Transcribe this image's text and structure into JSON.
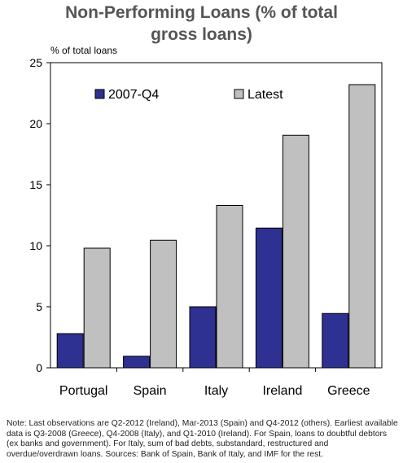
{
  "chart_data": {
    "type": "bar",
    "title_lines": [
      "Non-Performing Loans (% of total",
      "gross loans)"
    ],
    "ylabel": "% of total loans",
    "categories": [
      "Portugal",
      "Spain",
      "Italy",
      "Ireland",
      "Greece"
    ],
    "series": [
      {
        "name": "2007-Q4",
        "color": "#2e3192",
        "values": [
          2.8,
          0.95,
          5.0,
          11.45,
          4.45
        ]
      },
      {
        "name": "Latest",
        "color": "#c0c0c0",
        "values": [
          9.8,
          10.45,
          13.3,
          19.05,
          23.2
        ]
      }
    ],
    "ylim": [
      0,
      25
    ],
    "yticks": [
      "0",
      "5",
      "10",
      "15",
      "20",
      "25"
    ],
    "legend_position": "top-left, inside plot",
    "grid": false
  },
  "note": "Note: Last observations are Q2-2012 (Ireland), Mar-2013 (Spain) and Q4-2012 (others). Earliest available data is Q3-2008 (Greece), Q4-2008 (Italy), and Q1-2010 (Ireland). For Spain, loans to doubtful debtors (ex banks and government). For Italy, sum of bad debts, substandard, restructured and overdue/overdrawn loans. Sources: Bank of Spain, Bank of Italy, and IMF for the rest."
}
